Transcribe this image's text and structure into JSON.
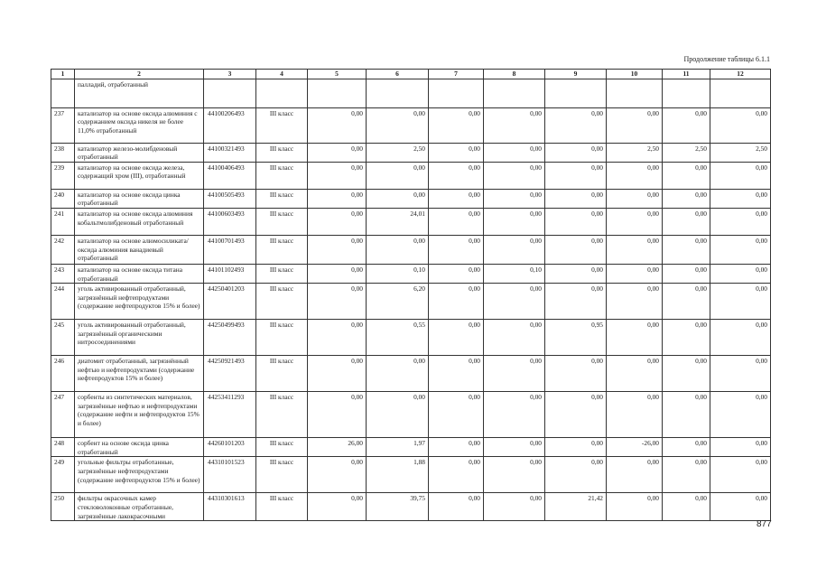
{
  "caption": "Продолжение таблицы 6.1.1",
  "header": [
    "1",
    "2",
    "3",
    "4",
    "5",
    "6",
    "7",
    "8",
    "9",
    "10",
    "11",
    "12"
  ],
  "rows": [
    {
      "no": "",
      "name": "палладий, отработанный",
      "code": "",
      "cls": "",
      "vals": [
        "",
        "",
        "",
        "",
        "",
        "",
        "",
        ""
      ]
    },
    {
      "no": "237",
      "name": "катализатор на основе оксида алюминия с содержанием оксида никеля не более 11,0% отработанный",
      "code": "44100206493",
      "cls": "III класс",
      "vals": [
        "0,00",
        "0,00",
        "0,00",
        "0,00",
        "0,00",
        "0,00",
        "0,00",
        "0,00"
      ]
    },
    {
      "no": "238",
      "name": "катализатор железо-молибденовый отработанный",
      "code": "44100321493",
      "cls": "III класс",
      "vals": [
        "0,00",
        "2,50",
        "0,00",
        "0,00",
        "0,00",
        "2,50",
        "2,50",
        "2,50"
      ]
    },
    {
      "no": "239",
      "name": "катализатор на основе оксида железа, содержащий хром (III), отработанный",
      "code": "44100406493",
      "cls": "III класс",
      "vals": [
        "0,00",
        "0,00",
        "0,00",
        "0,00",
        "0,00",
        "0,00",
        "0,00",
        "0,00"
      ]
    },
    {
      "no": "240",
      "name": "катализатор на основе оксида цинка отработанный",
      "code": "44100505493",
      "cls": "III класс",
      "vals": [
        "0,00",
        "0,00",
        "0,00",
        "0,00",
        "0,00",
        "0,00",
        "0,00",
        "0,00"
      ]
    },
    {
      "no": "241",
      "name": "катализатор на основе оксида алюминия кобальтмолибденовый отработанный",
      "code": "44100603493",
      "cls": "III класс",
      "vals": [
        "0,00",
        "24,01",
        "0,00",
        "0,00",
        "0,00",
        "0,00",
        "0,00",
        "0,00"
      ]
    },
    {
      "no": "242",
      "name": "катализатор на основе алюмосиликата/оксида алюминия ванадиевый отработанный",
      "code": "44100701493",
      "cls": "III класс",
      "vals": [
        "0,00",
        "0,00",
        "0,00",
        "0,00",
        "0,00",
        "0,00",
        "0,00",
        "0,00"
      ]
    },
    {
      "no": "243",
      "name": "катализатор на основе оксида титана отработанный",
      "code": "44101102493",
      "cls": "III класс",
      "vals": [
        "0,00",
        "0,10",
        "0,00",
        "0,10",
        "0,00",
        "0,00",
        "0,00",
        "0,00"
      ]
    },
    {
      "no": "244",
      "name": "уголь активированный отработанный, загрязнённый нефтепродуктами (содержание нефтепродуктов 15% и более)",
      "code": "44250401203",
      "cls": "III класс",
      "vals": [
        "0,00",
        "6,20",
        "0,00",
        "0,00",
        "0,00",
        "0,00",
        "0,00",
        "0,00"
      ]
    },
    {
      "no": "245",
      "name": "уголь активированный отработанный, загрязнённый органическими нитросоединениями",
      "code": "44250499493",
      "cls": "III класс",
      "vals": [
        "0,00",
        "0,55",
        "0,00",
        "0,00",
        "0,95",
        "0,00",
        "0,00",
        "0,00"
      ]
    },
    {
      "no": "246",
      "name": "диатомит отработанный, загрязнённый нефтью и нефтепродуктами (содержание нефтепродуктов 15% и более)",
      "code": "44250921493",
      "cls": "III класс",
      "vals": [
        "0,00",
        "0,00",
        "0,00",
        "0,00",
        "0,00",
        "0,00",
        "0,00",
        "0,00"
      ]
    },
    {
      "no": "247",
      "name": "сорбенты из синтетических материалов, загрязнённые нефтью и нефтепродуктами (содержание нефти и нефтепродуктов 15% и более)",
      "code": "44253411293",
      "cls": "III класс",
      "vals": [
        "0,00",
        "0,00",
        "0,00",
        "0,00",
        "0,00",
        "0,00",
        "0,00",
        "0,00"
      ]
    },
    {
      "no": "248",
      "name": "сорбент на основе оксида цинка отработанный",
      "code": "44260101203",
      "cls": "III класс",
      "vals": [
        "26,00",
        "1,97",
        "0,00",
        "0,00",
        "0,00",
        "-26,00",
        "0,00",
        "0,00"
      ]
    },
    {
      "no": "249",
      "name": "угольные фильтры отработанные, загрязнённые нефтепродуктами (содержание нефтепродуктов 15% и более)",
      "code": "44310101523",
      "cls": "III класс",
      "vals": [
        "0,00",
        "1,88",
        "0,00",
        "0,00",
        "0,00",
        "0,00",
        "0,00",
        "0,00"
      ]
    },
    {
      "no": "250",
      "name": "фильтры окрасочных камер стекловолоконные отработанные, загрязнённые лакокрасочными",
      "code": "44310301613",
      "cls": "III класс",
      "vals": [
        "0,00",
        "39,75",
        "0,00",
        "0,00",
        "21,42",
        "0,00",
        "0,00",
        "0,00"
      ]
    }
  ],
  "page_number": "877"
}
